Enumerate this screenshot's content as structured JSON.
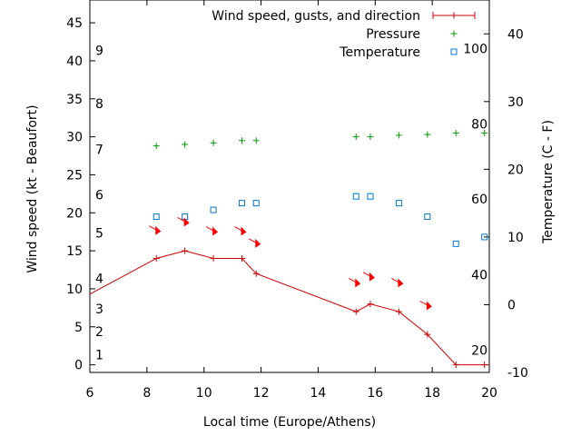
{
  "chart_data": {
    "type": "line",
    "xlabel": "Local time (Europe/Athens)",
    "ylabel": "Wind speed (kt - Beaufort)",
    "y2label": "Temperature (C - F)",
    "xlim": [
      6,
      20
    ],
    "ylim": [
      -1,
      48
    ],
    "y2lim": [
      -10,
      45
    ],
    "grid": false,
    "legend_position": "top-right",
    "x_ticks": [
      6,
      8,
      10,
      12,
      14,
      16,
      18,
      20
    ],
    "y_ticks": [
      0,
      5,
      10,
      15,
      20,
      25,
      30,
      35,
      40,
      45
    ],
    "y2_ticks": [
      -10,
      0,
      10,
      20,
      30,
      40
    ],
    "beaufort_labels": [
      {
        "value": "1",
        "y": 1
      },
      {
        "value": "2",
        "y": 4
      },
      {
        "value": "3",
        "y": 7
      },
      {
        "value": "4",
        "y": 11
      },
      {
        "value": "5",
        "y": 17
      },
      {
        "value": "6",
        "y": 22
      },
      {
        "value": "7",
        "y": 28
      },
      {
        "value": "8",
        "y": 34
      },
      {
        "value": "9",
        "y": 41
      }
    ],
    "fahrenheit_labels": [
      {
        "value": "20",
        "temp": -6.7
      },
      {
        "value": "40",
        "temp": 4.4
      },
      {
        "value": "60",
        "temp": 15.6
      },
      {
        "value": "80",
        "temp": 26.7
      },
      {
        "value": "100",
        "temp": 37.8
      }
    ],
    "series": [
      {
        "name": "Wind speed, gusts, and direction",
        "color": "#cc0000",
        "axis": "y",
        "x": [
          6,
          8.33,
          9.33,
          10.33,
          11.33,
          11.83,
          15.33,
          15.83,
          16.83,
          17.83,
          18.83,
          19.83,
          20
        ],
        "y": [
          9.3,
          14,
          15,
          14,
          14,
          12,
          7,
          8,
          7,
          4,
          0,
          0,
          0
        ]
      },
      {
        "name": "Pressure",
        "color": "#009900",
        "axis": "y",
        "x": [
          8.33,
          9.33,
          10.33,
          11.33,
          11.83,
          15.33,
          15.83,
          16.83,
          17.83,
          18.83,
          19.83
        ],
        "y": [
          28.8,
          29.0,
          29.2,
          29.5,
          29.5,
          30.0,
          30.0,
          30.2,
          30.3,
          30.5,
          30.5
        ]
      },
      {
        "name": "Temperature",
        "color": "#0077cc",
        "axis": "y2",
        "x": [
          8.33,
          9.33,
          10.33,
          11.33,
          11.83,
          15.33,
          15.83,
          16.83,
          17.83,
          18.83,
          19.83
        ],
        "y": [
          13,
          13,
          14,
          15,
          15,
          16,
          16,
          15,
          13,
          9,
          10
        ]
      }
    ],
    "wind_arrows": {
      "color": "#ff0000",
      "x": [
        8.33,
        9.33,
        10.33,
        11.33,
        11.83,
        15.33,
        15.83,
        16.83,
        17.83
      ],
      "y": [
        17.8,
        18.9,
        17.7,
        17.7,
        16.1,
        10.9,
        11.7,
        10.9,
        7.9
      ]
    }
  }
}
